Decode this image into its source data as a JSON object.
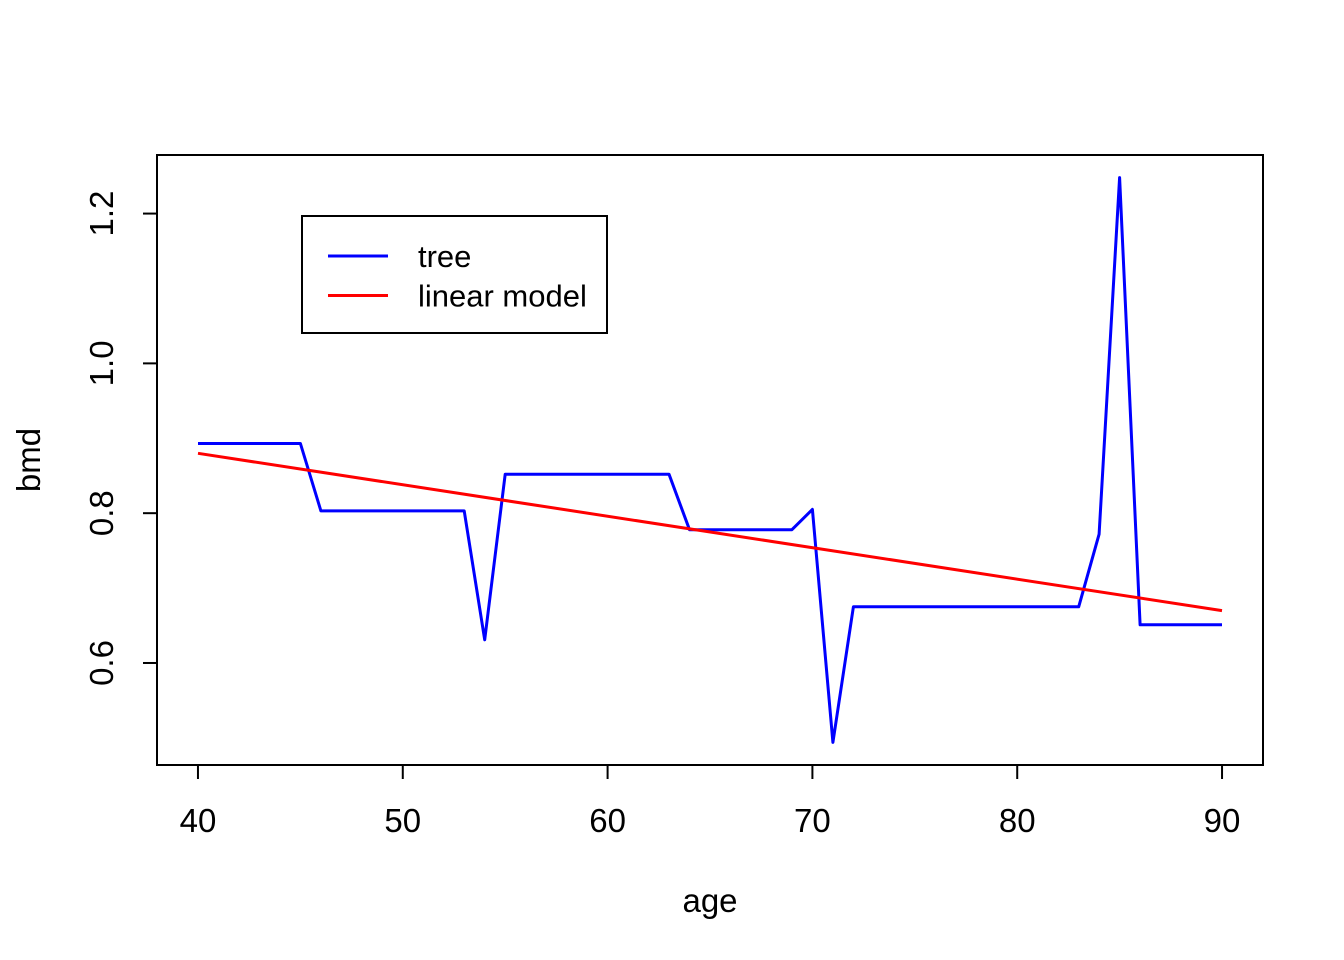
{
  "page": {
    "background": "#ffffff"
  },
  "chart_data": {
    "type": "line",
    "title": "",
    "xlabel": "age",
    "ylabel": "bmd",
    "xlim": [
      38,
      92
    ],
    "ylim": [
      0.4638,
      1.2782
    ],
    "x_ticks": [
      40,
      50,
      60,
      70,
      80,
      90
    ],
    "x_tick_labels": [
      "40",
      "50",
      "60",
      "70",
      "80",
      "90"
    ],
    "y_ticks": [
      0.6,
      0.8,
      1.0,
      1.2
    ],
    "y_tick_labels": [
      "0.6",
      "0.8",
      "1.0",
      "1.2"
    ],
    "grid": false,
    "axis_color": "#000000",
    "background": "#ffffff",
    "legend": {
      "position": "top-left-inset",
      "border": true,
      "items": [
        {
          "label": "tree",
          "color": "#0000ff"
        },
        {
          "label": "linear model",
          "color": "#ff0000"
        }
      ]
    },
    "series": [
      {
        "name": "tree",
        "color": "#0000ff",
        "x": [
          40,
          45,
          46,
          53,
          54,
          55,
          63,
          64,
          69,
          70,
          71,
          72,
          83,
          84,
          85,
          86,
          90
        ],
        "y": [
          0.893,
          0.893,
          0.803,
          0.803,
          0.631,
          0.852,
          0.852,
          0.778,
          0.778,
          0.805,
          0.494,
          0.675,
          0.675,
          0.772,
          1.248,
          0.651,
          0.651
        ]
      },
      {
        "name": "linear model",
        "color": "#ff0000",
        "x": [
          40,
          90
        ],
        "y": [
          0.88,
          0.67
        ]
      }
    ]
  }
}
